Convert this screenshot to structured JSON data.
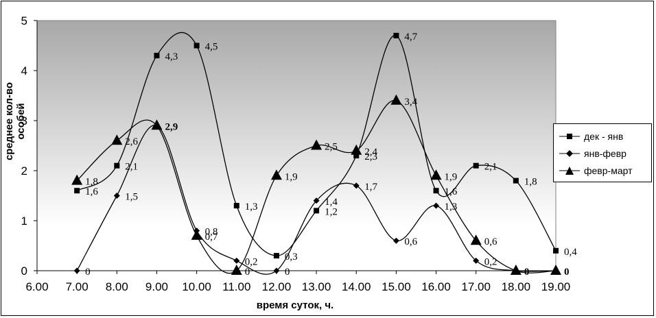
{
  "chart_data": {
    "type": "line",
    "xlabel": "время суток, ч.",
    "ylabel": "среднее кол-во особей",
    "xlim": [
      6,
      19
    ],
    "ylim": [
      0,
      5
    ],
    "x_ticks": [
      "6.00",
      "7.00",
      "8.00",
      "9.00",
      "10.00",
      "11.00",
      "12.00",
      "13.00",
      "14.00",
      "15.00",
      "16.00",
      "17.00",
      "18.00",
      "19.00"
    ],
    "y_ticks": [
      "0",
      "1",
      "2",
      "3",
      "4",
      "5"
    ],
    "legend_position": "right",
    "series": [
      {
        "name": "дек - янв",
        "marker": "square",
        "x": [
          7,
          8,
          9,
          10,
          11,
          12,
          13,
          14,
          15,
          16,
          17,
          18,
          19
        ],
        "values": [
          1.6,
          2.1,
          4.3,
          4.5,
          1.3,
          0.3,
          1.2,
          2.3,
          4.7,
          1.6,
          2.1,
          1.8,
          0.4
        ],
        "labels": [
          "1,6",
          "2,1",
          "4,3",
          "4,5",
          "1,3",
          "0,3",
          "1,2",
          "2,3",
          "4,7",
          "1,6",
          "2,1",
          "1,8",
          "0,4"
        ]
      },
      {
        "name": "янв-февр",
        "marker": "diamond",
        "x": [
          7,
          8,
          9,
          10,
          11,
          12,
          13,
          14,
          15,
          16,
          17,
          18,
          19
        ],
        "values": [
          0,
          1.5,
          2.9,
          0.8,
          0.2,
          0,
          1.4,
          1.7,
          0.6,
          1.3,
          0.2,
          0,
          0
        ],
        "labels": [
          "0",
          "1,5",
          "",
          "0,8",
          "0,2",
          "0",
          "1,4",
          "1,7",
          "0,6",
          "1,3",
          "0,2",
          "",
          ""
        ]
      },
      {
        "name": "февр-март",
        "marker": "triangle",
        "x": [
          7,
          8,
          9,
          10,
          11,
          12,
          13,
          14,
          15,
          16,
          17,
          18,
          19
        ],
        "values": [
          1.8,
          2.6,
          2.9,
          0.7,
          0,
          1.9,
          2.5,
          2.4,
          3.4,
          1.9,
          0.6,
          0,
          0
        ],
        "labels": [
          "1,8",
          "2,6",
          "2,9",
          "0,7",
          "0",
          "1,9",
          "2,5",
          "2,4",
          "3,4",
          "1,9",
          "0,6",
          "0",
          "0"
        ]
      }
    ]
  }
}
